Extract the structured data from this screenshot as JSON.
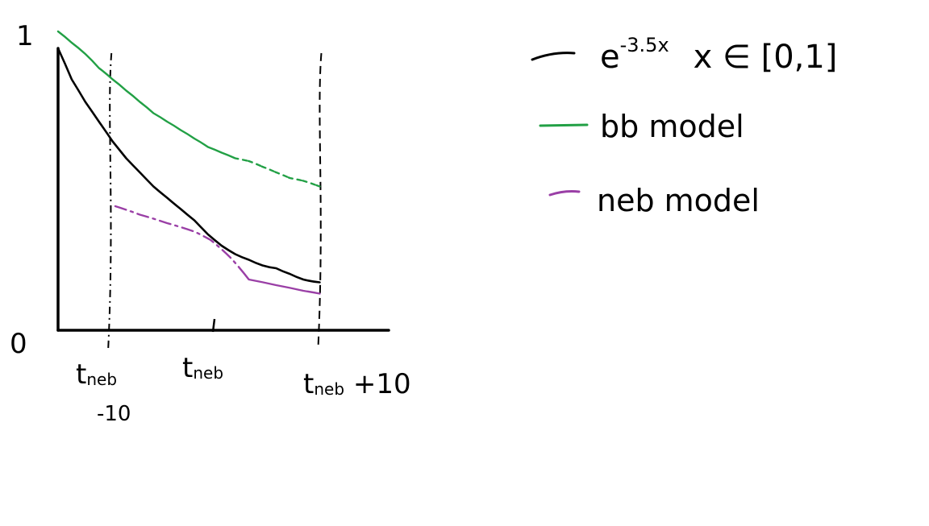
{
  "chart_data": {
    "type": "line",
    "title": "",
    "xlabel": "",
    "ylabel": "",
    "y_ticks": [
      "1",
      "0"
    ],
    "x_ticks": [
      {
        "label": "t_neb -10",
        "main": "t",
        "sub": "neb",
        "suffix": "",
        "second_line": "-10"
      },
      {
        "label": "t_neb",
        "main": "t",
        "sub": "neb",
        "suffix": "",
        "second_line": ""
      },
      {
        "label": "t_neb +10",
        "main": "t",
        "sub": "neb",
        "suffix": " +10",
        "second_line": ""
      }
    ],
    "xlim": [
      0,
      1
    ],
    "ylim": [
      0,
      1
    ],
    "vertical_markers": [
      {
        "x": 0.19,
        "label": "t_neb -10",
        "style": "dashed"
      },
      {
        "x": 0.96,
        "label": "t_neb +10",
        "style": "dashed"
      }
    ],
    "series": [
      {
        "name": "e^-3.5x  x ∈ [0,1]",
        "color": "#000000",
        "style": "solid",
        "x": [
          0.0,
          0.05,
          0.1,
          0.15,
          0.2,
          0.25,
          0.3,
          0.35,
          0.4,
          0.45,
          0.5,
          0.55,
          0.6,
          0.65,
          0.7,
          0.75,
          0.8,
          0.85,
          0.9,
          0.96
        ],
        "y": [
          1.0,
          0.89,
          0.81,
          0.74,
          0.67,
          0.61,
          0.56,
          0.51,
          0.47,
          0.43,
          0.39,
          0.34,
          0.3,
          0.27,
          0.25,
          0.23,
          0.22,
          0.2,
          0.18,
          0.17
        ]
      },
      {
        "name": "bb model",
        "color": "#22a045",
        "style": "solid-then-dashdot",
        "x": [
          0.0,
          0.05,
          0.1,
          0.15,
          0.2,
          0.25,
          0.3,
          0.35,
          0.4,
          0.45,
          0.5,
          0.55,
          0.6,
          0.65,
          0.7,
          0.75,
          0.8,
          0.85,
          0.9,
          0.96
        ],
        "y": [
          1.06,
          1.02,
          0.98,
          0.93,
          0.89,
          0.85,
          0.81,
          0.77,
          0.74,
          0.71,
          0.68,
          0.65,
          0.63,
          0.61,
          0.6,
          0.58,
          0.56,
          0.54,
          0.53,
          0.51
        ]
      },
      {
        "name": "neb model",
        "color": "#9a3fa6",
        "style": "dashdot-then-solid",
        "x": [
          0.21,
          0.3,
          0.4,
          0.5,
          0.56,
          0.63,
          0.7,
          0.8,
          0.9,
          0.96
        ],
        "y": [
          0.44,
          0.41,
          0.38,
          0.35,
          0.32,
          0.26,
          0.18,
          0.16,
          0.14,
          0.13
        ]
      }
    ],
    "legend": {
      "placement": "right",
      "entries": [
        {
          "series": "e^-3.5x  x ∈ [0,1]",
          "base": "e",
          "exponent": "-3.5x",
          "domain": "x ∈ [0,1]",
          "color": "#000000"
        },
        {
          "series": "bb model",
          "text": "bb model",
          "color": "#22a045"
        },
        {
          "series": "neb model",
          "text": "neb model",
          "color": "#9a3fa6"
        }
      ]
    },
    "grid": false
  }
}
